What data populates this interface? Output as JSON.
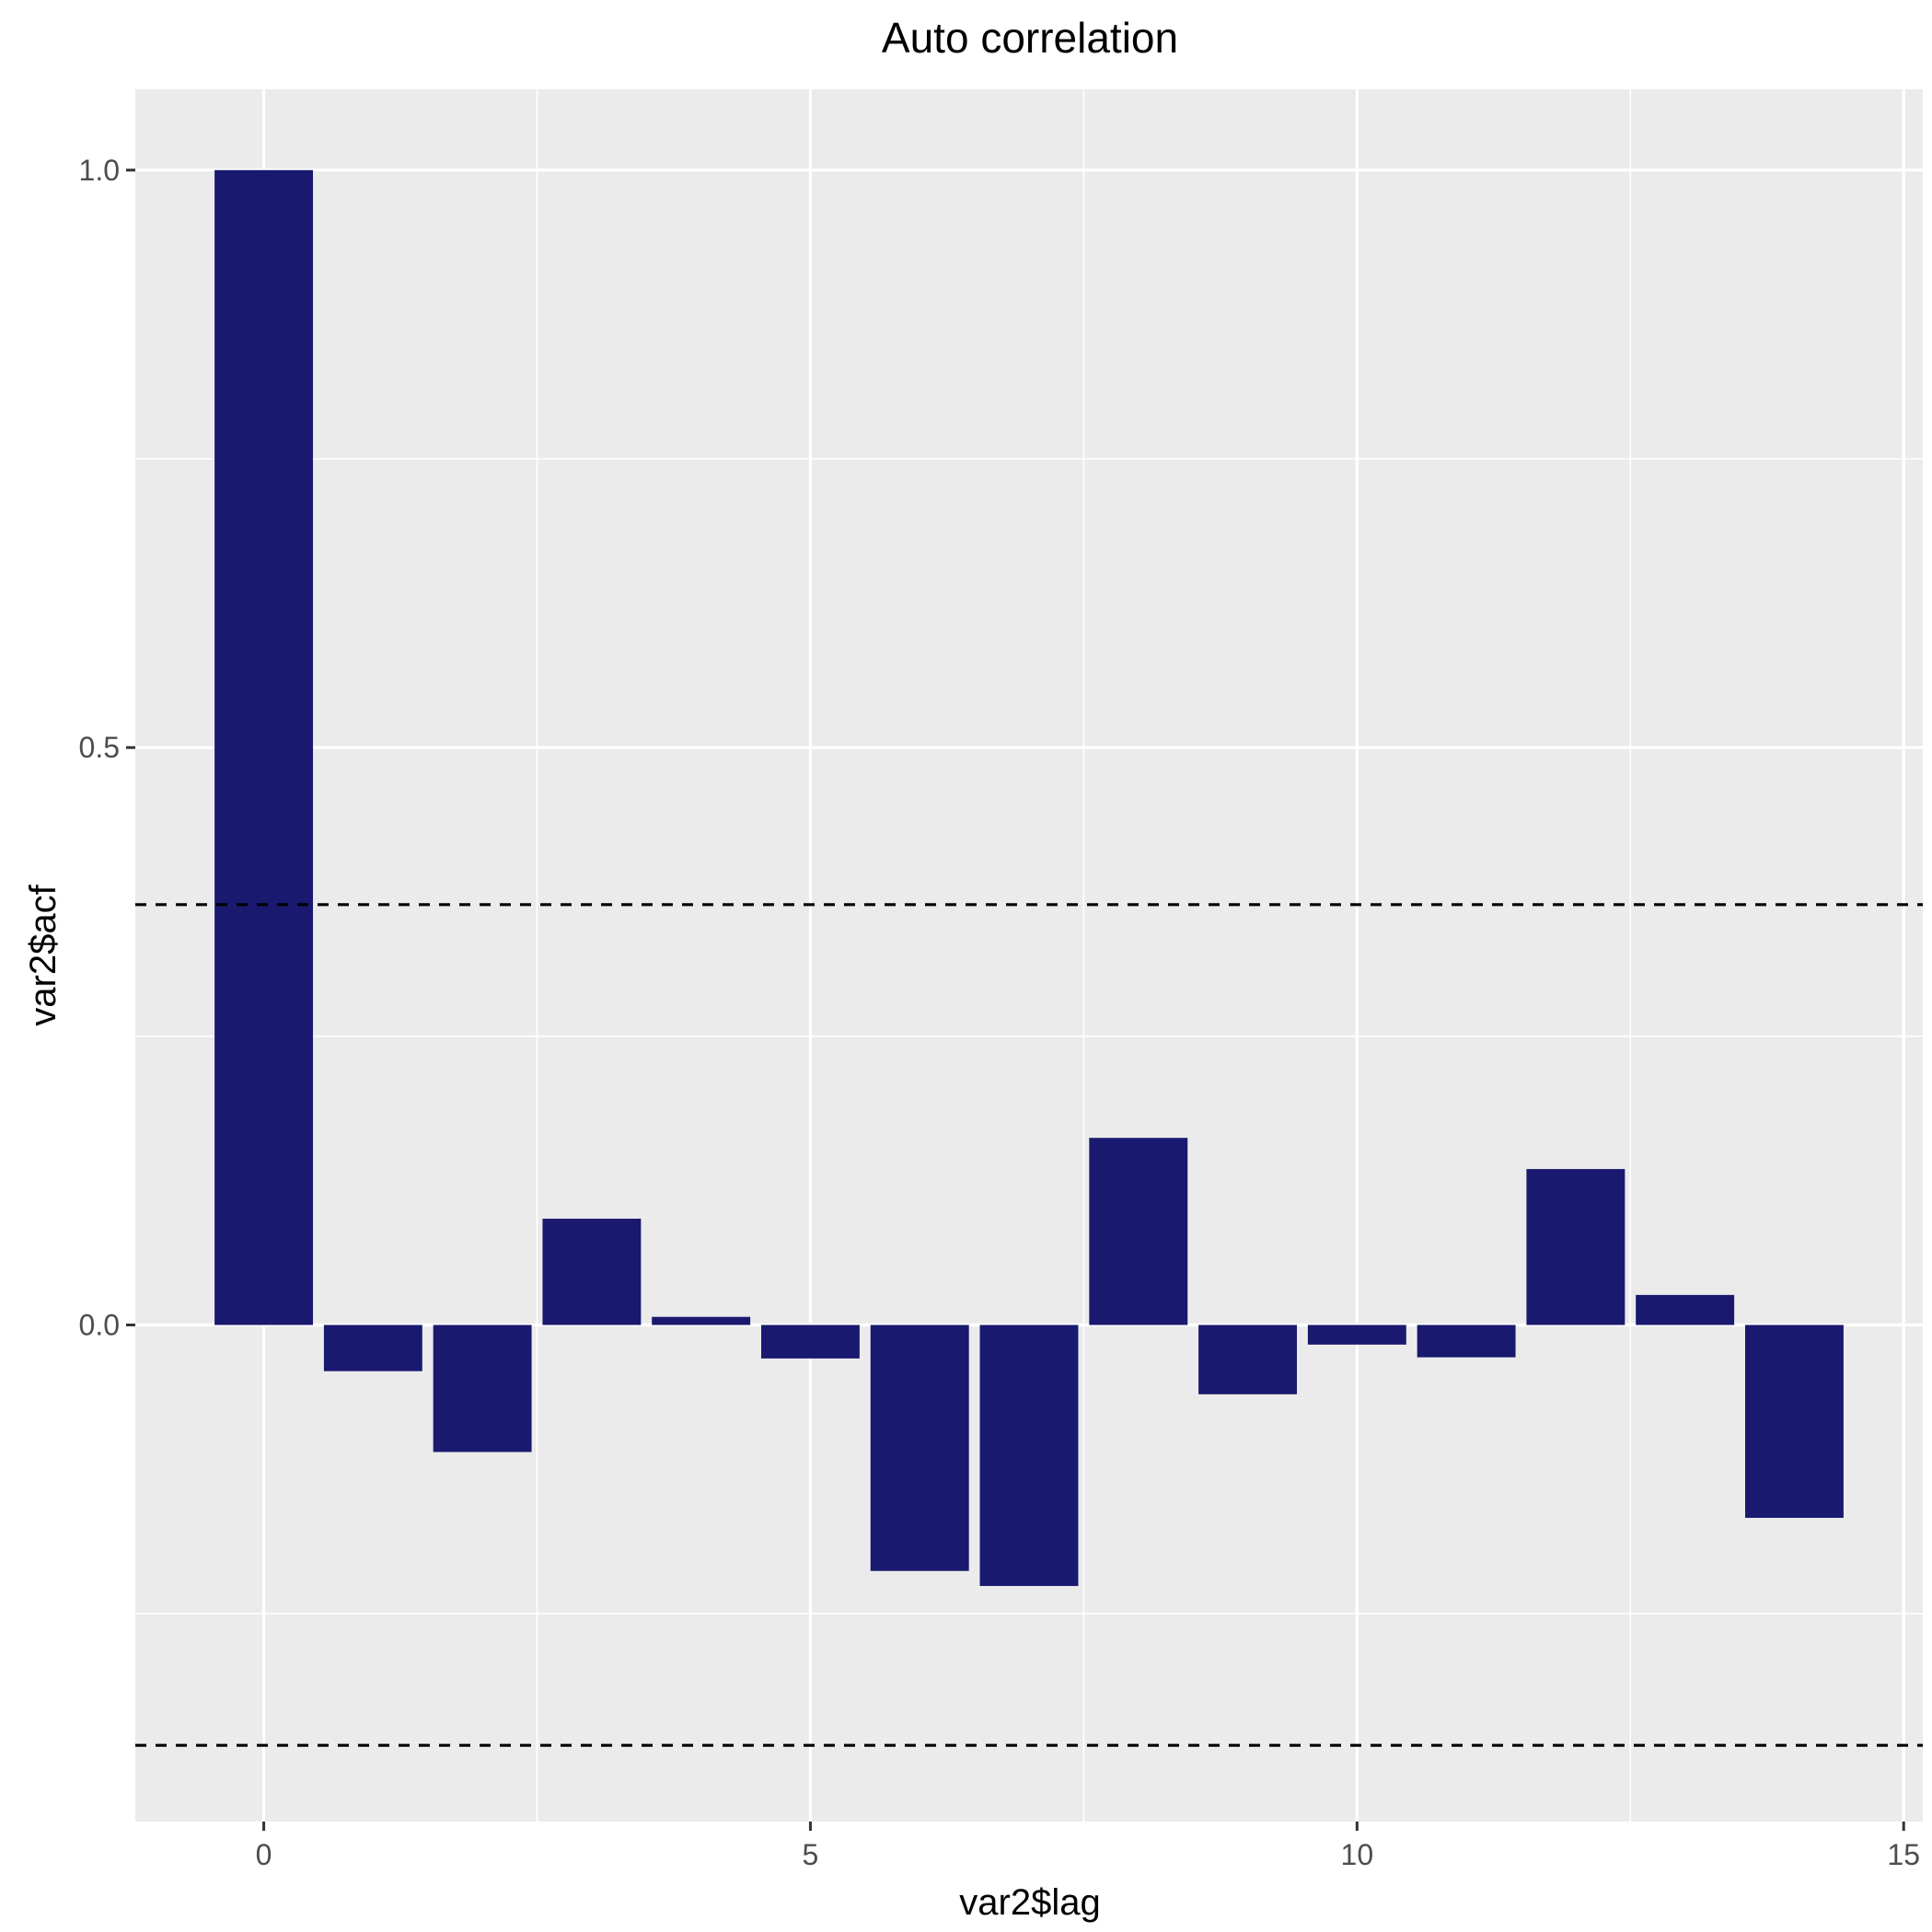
{
  "chart_data": {
    "type": "bar",
    "title": "Auto correlation",
    "xlabel": "var2$lag",
    "ylabel": "var2$acf",
    "x": [
      0,
      1,
      2,
      3,
      4,
      5,
      6,
      7,
      8,
      9,
      10,
      11,
      12,
      13,
      14
    ],
    "values": [
      1.0,
      -0.04,
      -0.11,
      0.092,
      0.007,
      -0.029,
      -0.213,
      -0.226,
      0.162,
      -0.06,
      -0.017,
      -0.028,
      0.135,
      0.026,
      -0.167
    ],
    "confidence_bounds": [
      0.364,
      -0.364
    ],
    "xlim": [
      -1.175,
      15.175
    ],
    "ylim": [
      -0.43,
      1.07
    ],
    "x_ticks": [
      0,
      5,
      10,
      15
    ],
    "y_ticks": [
      0.0,
      0.5,
      1.0
    ],
    "x_tick_labels": [
      "0",
      "5",
      "10",
      "15"
    ],
    "y_tick_labels": [
      "0.0",
      "0.5",
      "1.0"
    ],
    "grid": true,
    "legend": "none",
    "colors": {
      "bar": "#191970",
      "panel": "#ebebeb",
      "grid": "#ffffff",
      "bound_line": "#000000"
    }
  }
}
